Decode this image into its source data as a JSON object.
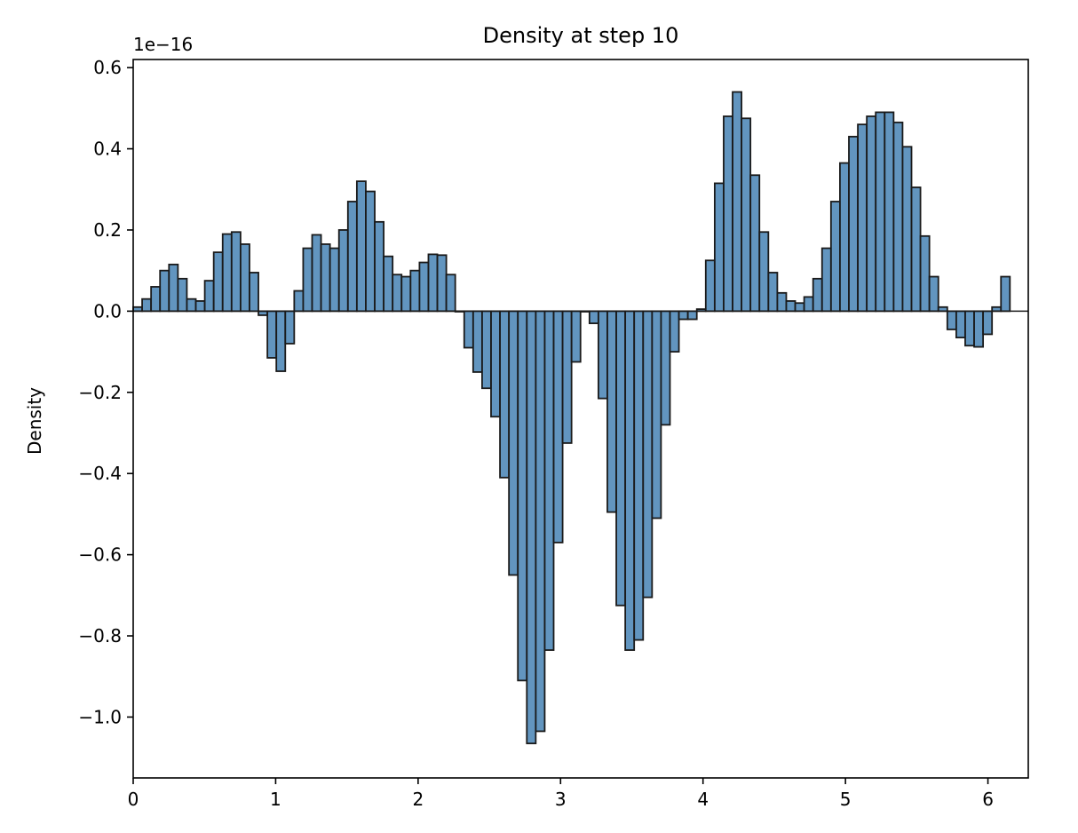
{
  "chart_data": {
    "type": "bar",
    "title": "Density at step 10",
    "xlabel": "",
    "ylabel": "Density",
    "y_multiplier_label": "1e−16",
    "xlim": [
      0,
      6.2832
    ],
    "ylim": [
      -1.15,
      0.62
    ],
    "x_ticks": [
      0,
      1,
      2,
      3,
      4,
      5,
      6
    ],
    "x_tick_labels": [
      "0",
      "1",
      "2",
      "3",
      "4",
      "5",
      "6"
    ],
    "y_ticks": [
      0.6,
      0.4,
      0.2,
      0.0,
      -0.2,
      -0.4,
      -0.6,
      -0.8,
      -1.0
    ],
    "y_tick_labels": [
      "0.6",
      "0.4",
      "0.2",
      "0.0",
      "−0.2",
      "−0.4",
      "−0.6",
      "−0.8",
      "−1.0"
    ],
    "bar_color": "#4682b4",
    "bar_edge_color": "#1a1a1a",
    "bin_start": 0,
    "bin_width": 0.0628,
    "values": [
      0.01,
      0.03,
      0.06,
      0.1,
      0.115,
      0.08,
      0.03,
      0.025,
      0.075,
      0.145,
      0.19,
      0.195,
      0.165,
      0.095,
      -0.01,
      -0.115,
      -0.148,
      -0.08,
      0.05,
      0.155,
      0.188,
      0.165,
      0.155,
      0.2,
      0.27,
      0.32,
      0.295,
      0.22,
      0.135,
      0.09,
      0.085,
      0.1,
      0.12,
      0.14,
      0.138,
      0.09,
      0.0,
      -0.09,
      -0.15,
      -0.19,
      -0.26,
      -0.41,
      -0.65,
      -0.91,
      -1.065,
      -1.035,
      -0.835,
      -0.57,
      -0.325,
      -0.125,
      0.0,
      -0.03,
      -0.215,
      -0.495,
      -0.725,
      -0.835,
      -0.81,
      -0.705,
      -0.51,
      -0.28,
      -0.1,
      -0.02,
      -0.02,
      0.005,
      0.125,
      0.315,
      0.48,
      0.54,
      0.475,
      0.335,
      0.195,
      0.095,
      0.045,
      0.025,
      0.02,
      0.035,
      0.08,
      0.155,
      0.27,
      0.365,
      0.43,
      0.46,
      0.48,
      0.49,
      0.49,
      0.465,
      0.405,
      0.305,
      0.185,
      0.085,
      0.01,
      -0.045,
      -0.065,
      -0.085,
      -0.088,
      -0.057,
      0.01,
      0.085
    ]
  }
}
